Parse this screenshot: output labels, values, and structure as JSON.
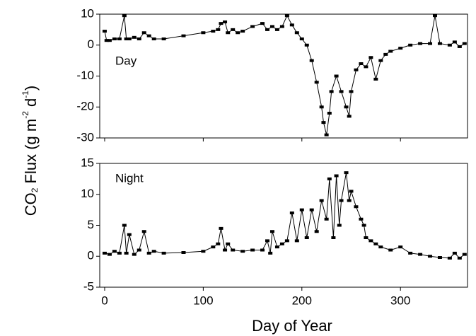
{
  "chart_data": [
    {
      "type": "line",
      "annotation": "Day",
      "color": "#000000",
      "x": [
        0,
        2,
        5,
        10,
        15,
        20,
        22,
        25,
        30,
        35,
        40,
        45,
        50,
        60,
        80,
        100,
        110,
        115,
        118,
        122,
        125,
        130,
        135,
        140,
        150,
        160,
        165,
        170,
        175,
        180,
        185,
        190,
        195,
        200,
        205,
        210,
        215,
        220,
        222,
        225,
        228,
        230,
        235,
        240,
        245,
        248,
        250,
        255,
        260,
        265,
        270,
        275,
        280,
        285,
        290,
        300,
        310,
        320,
        330,
        335,
        340,
        350,
        355,
        360,
        365
      ],
      "values": [
        4.5,
        1.5,
        1.5,
        2,
        2,
        9.5,
        2,
        2,
        2.5,
        2,
        4,
        3,
        2,
        2,
        3,
        4,
        4.5,
        5,
        7,
        7.5,
        4,
        5,
        4,
        4.5,
        6,
        7,
        5,
        6,
        5,
        6,
        9.5,
        6.5,
        4,
        2,
        0,
        -5,
        -12,
        -20,
        -25,
        -29,
        -22,
        -15,
        -10,
        -15,
        -20,
        -23,
        -15,
        -8,
        -6,
        -7,
        -4,
        -11,
        -5,
        -3,
        -2,
        -1,
        0,
        0.5,
        0.5,
        9.5,
        0.5,
        0,
        1,
        -0.5,
        0.5
      ],
      "xlim": [
        -5,
        368
      ],
      "xticks": [
        0,
        100,
        200,
        300
      ],
      "ylim": [
        -30,
        10
      ],
      "yticks": [
        -30,
        -20,
        -10,
        0,
        10
      ]
    },
    {
      "type": "line",
      "annotation": "Night",
      "color": "#000000",
      "x": [
        0,
        5,
        10,
        15,
        20,
        22,
        25,
        30,
        35,
        40,
        45,
        50,
        60,
        80,
        100,
        110,
        115,
        118,
        122,
        125,
        130,
        140,
        150,
        160,
        165,
        168,
        170,
        175,
        180,
        185,
        190,
        195,
        200,
        205,
        210,
        215,
        220,
        225,
        228,
        232,
        235,
        238,
        240,
        245,
        248,
        250,
        255,
        260,
        263,
        265,
        270,
        275,
        280,
        290,
        300,
        310,
        320,
        330,
        340,
        350,
        355,
        360,
        365
      ],
      "values": [
        0.5,
        0.3,
        0.8,
        0.5,
        5,
        0.5,
        3.5,
        0.3,
        1,
        4,
        0.5,
        0.8,
        0.5,
        0.6,
        0.8,
        1.5,
        2,
        4.5,
        1,
        2,
        1,
        0.8,
        1,
        1,
        2.5,
        0.5,
        4,
        1.5,
        2,
        2.5,
        7,
        2.5,
        7.5,
        3,
        7.5,
        4,
        9,
        6,
        12.5,
        3,
        13,
        5,
        9,
        13.5,
        9,
        10.5,
        8,
        6,
        5,
        3,
        2.5,
        2,
        1.5,
        1,
        1.5,
        0.5,
        0.3,
        0,
        -0.2,
        -0.3,
        0.5,
        -0.3,
        0.3
      ],
      "xlim": [
        -5,
        368
      ],
      "xticks": [
        0,
        100,
        200,
        300
      ],
      "ylim": [
        -5,
        15
      ],
      "yticks": [
        -5,
        0,
        5,
        10,
        15
      ],
      "x_label": "Day of Year",
      "y_label": [
        "CO",
        "2",
        " Flux  (g m",
        "-2",
        " d",
        "-1",
        ")"
      ]
    }
  ]
}
